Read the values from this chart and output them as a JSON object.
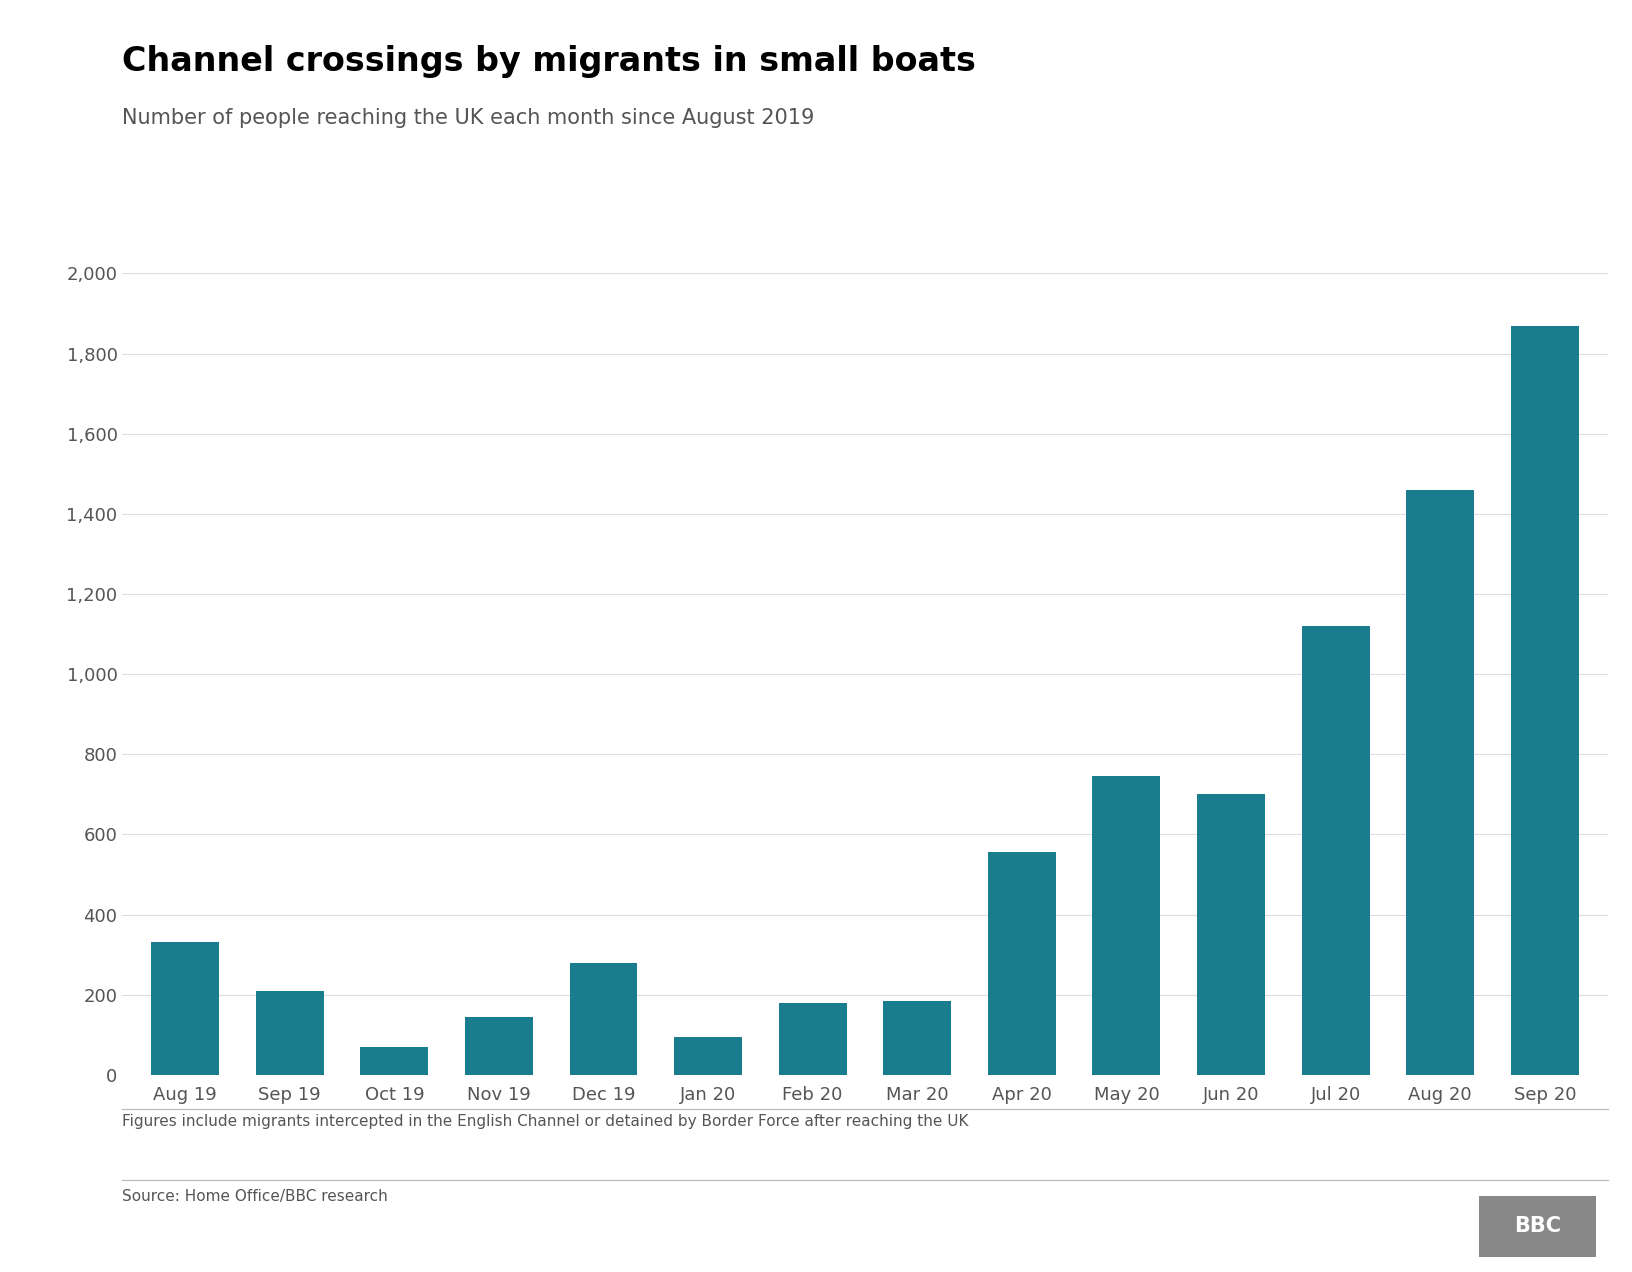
{
  "title": "Channel crossings by migrants in small boats",
  "subtitle": "Number of people reaching the UK each month since August 2019",
  "footnote": "Figures include migrants intercepted in the English Channel or detained by Border Force after reaching the UK",
  "source": "Source: Home Office/BBC research",
  "categories": [
    "Aug 19",
    "Sep 19",
    "Oct 19",
    "Nov 19",
    "Dec 19",
    "Jan 20",
    "Feb 20",
    "Mar 20",
    "Apr 20",
    "May 20",
    "Jun 20",
    "Jul 20",
    "Aug 20",
    "Sep 20"
  ],
  "values": [
    332,
    210,
    70,
    145,
    280,
    95,
    180,
    185,
    555,
    745,
    700,
    1120,
    1460,
    1870
  ],
  "bar_color": "#1a7d8e",
  "background_color": "#ffffff",
  "ylim": [
    0,
    2000
  ],
  "yticks": [
    0,
    200,
    400,
    600,
    800,
    1000,
    1200,
    1400,
    1600,
    1800,
    2000
  ],
  "title_fontsize": 24,
  "subtitle_fontsize": 15,
  "tick_fontsize": 13,
  "footnote_fontsize": 11,
  "source_fontsize": 11,
  "title_color": "#000000",
  "subtitle_color": "#555555",
  "tick_color": "#555555",
  "footnote_color": "#555555",
  "source_color": "#555555",
  "bar_width": 0.65
}
